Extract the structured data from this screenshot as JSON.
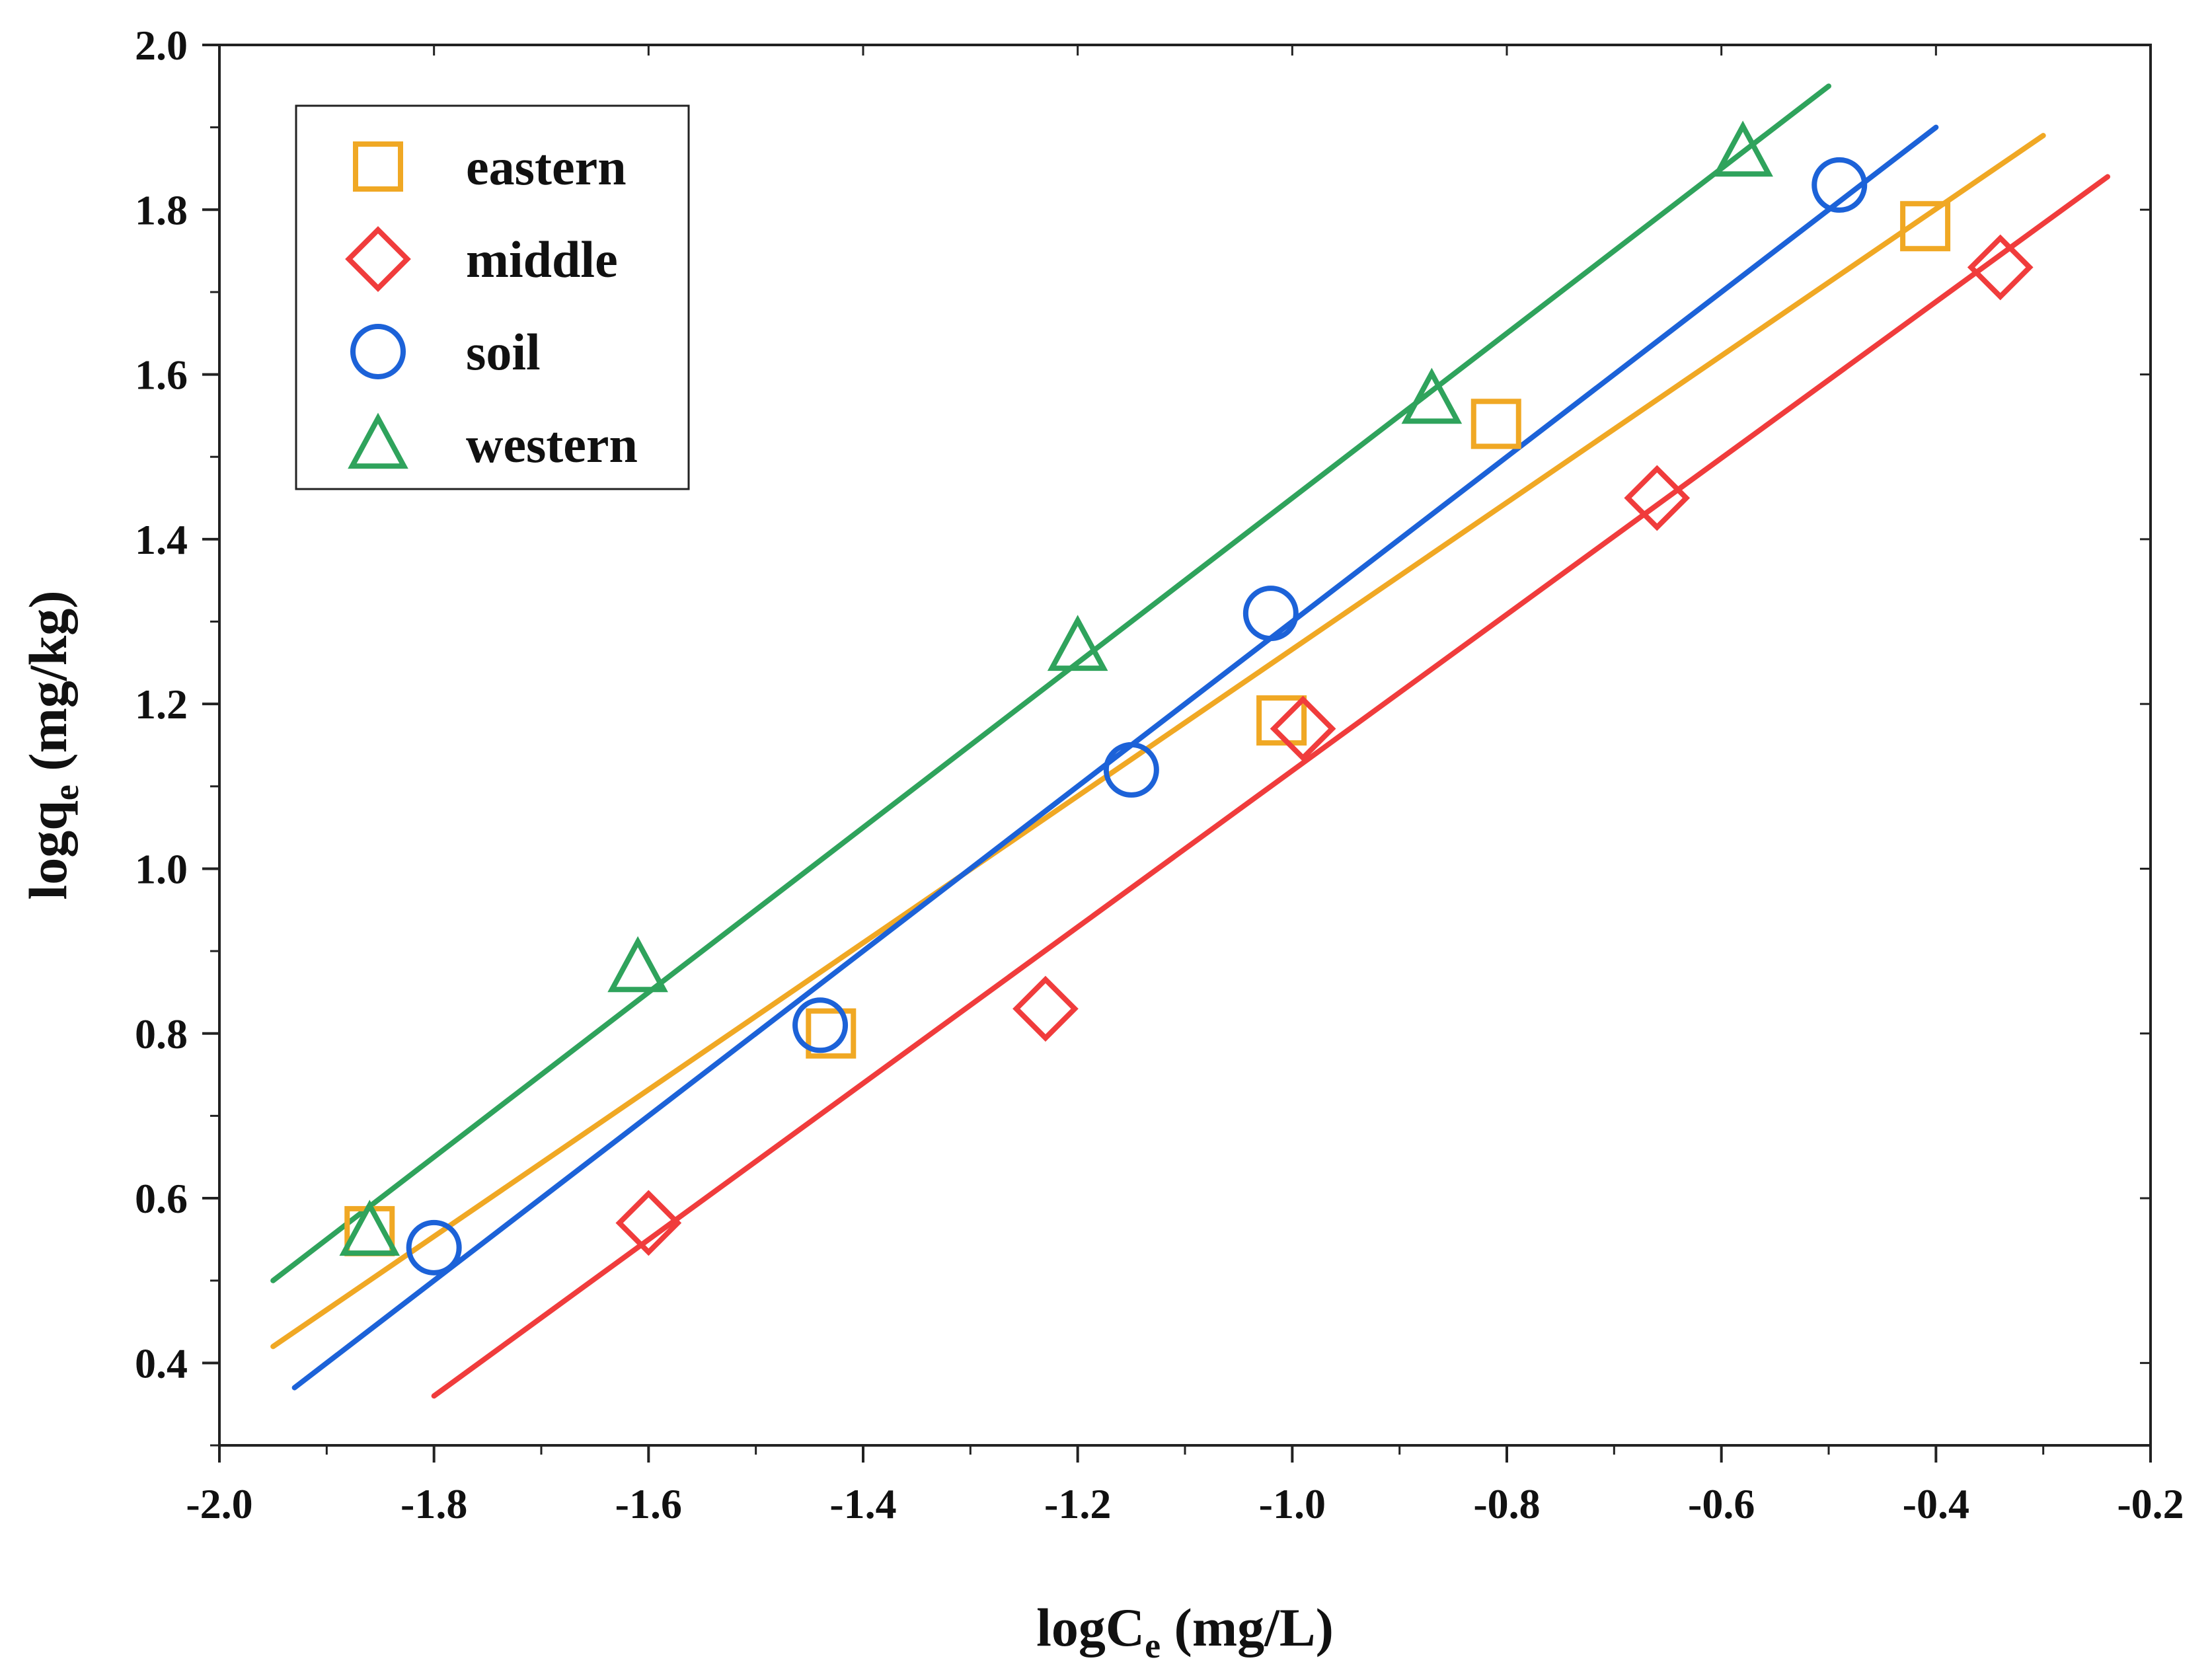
{
  "chart_data": {
    "type": "scatter",
    "xlabel": "logC",
    "xlabel_sub": "e",
    "xlabel_unit": "(mg/L)",
    "ylabel": "logq",
    "ylabel_sub": "e",
    "ylabel_unit": "(mg/kg)",
    "xlim": [
      -2.0,
      -0.2
    ],
    "ylim": [
      0.3,
      2.0
    ],
    "x_ticks": [
      "-2.0",
      "-1.8",
      "-1.6",
      "-1.4",
      "-1.2",
      "-1.0",
      "-0.8",
      "-0.6",
      "-0.4",
      "-0.2"
    ],
    "y_ticks": [
      "0.4",
      "0.6",
      "0.8",
      "1.0",
      "1.2",
      "1.4",
      "1.6",
      "1.8",
      "2.0"
    ],
    "legend_position": "top-left",
    "series": [
      {
        "name": "eastern",
        "marker": "square",
        "color": "#f0a824",
        "x": [
          -1.86,
          -1.43,
          -1.01,
          -0.81,
          -0.41
        ],
        "y": [
          0.56,
          0.8,
          1.18,
          1.54,
          1.78
        ],
        "fit_line": {
          "x": [
            -1.95,
            -0.3
          ],
          "y": [
            0.42,
            1.89
          ]
        }
      },
      {
        "name": "middle",
        "marker": "diamond",
        "color": "#f03c3c",
        "x": [
          -1.6,
          -1.23,
          -0.99,
          -0.66,
          -0.34
        ],
        "y": [
          0.57,
          0.83,
          1.17,
          1.45,
          1.73
        ],
        "fit_line": {
          "x": [
            -1.8,
            -0.24
          ],
          "y": [
            0.36,
            1.84
          ]
        }
      },
      {
        "name": "soil",
        "marker": "circle",
        "color": "#1c62d8",
        "x": [
          -1.8,
          -1.44,
          -1.15,
          -1.02,
          -0.49
        ],
        "y": [
          0.54,
          0.81,
          1.12,
          1.31,
          1.83
        ],
        "fit_line": {
          "x": [
            -1.93,
            -0.4
          ],
          "y": [
            0.37,
            1.9
          ]
        }
      },
      {
        "name": "western",
        "marker": "triangle",
        "color": "#2fa35c",
        "x": [
          -1.86,
          -1.61,
          -1.2,
          -0.87,
          -0.58
        ],
        "y": [
          0.56,
          0.88,
          1.27,
          1.57,
          1.87
        ],
        "fit_line": {
          "x": [
            -1.95,
            -0.5
          ],
          "y": [
            0.5,
            1.95
          ]
        }
      }
    ]
  }
}
